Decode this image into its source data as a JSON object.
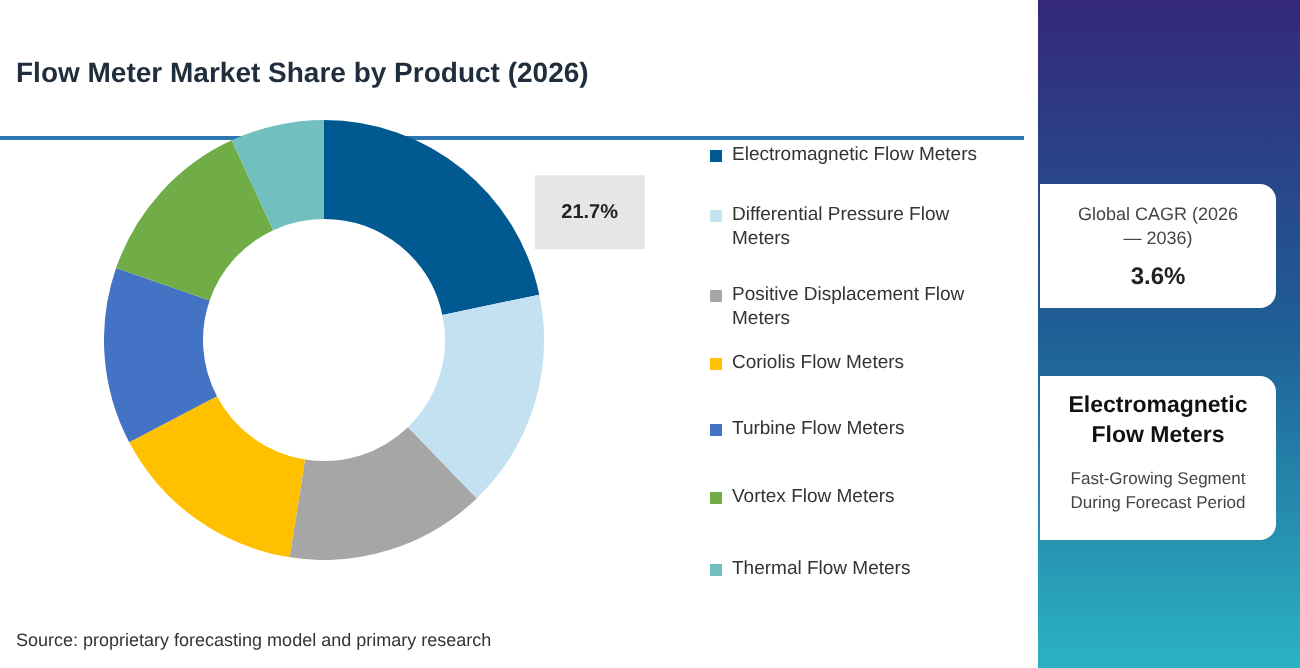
{
  "chart_data": {
    "type": "donut",
    "title": "Flow Meter Market Share by Product (2026)",
    "categories": [
      "Electromagnetic Flow Meters",
      "Differential Pressure Flow Meters",
      "Positive Displacement Flow Meters",
      "Coriolis Flow Meters",
      "Turbine Flow Meters",
      "Vortex Flow Meters",
      "Thermal Flow Meters"
    ],
    "values": [
      21.7,
      16.1,
      14.7,
      14.8,
      13.0,
      12.8,
      6.9
    ],
    "value_labels": [
      "21.7%",
      null,
      null,
      null,
      null,
      null,
      null
    ],
    "colors": [
      "#005a91",
      "#c4e1f2",
      "#a6a6a6",
      "#ffc000",
      "#4472c4",
      "#70ad47",
      "#72bfbf"
    ],
    "legend": "right",
    "annotations": [
      "Global CAGR (2026 — 2036)",
      "3.6%",
      "Electromagnetic Flow Meters",
      "Fast-Growing Segment During Forecast Period",
      "Source: proprietary forecasting model and primary research"
    ]
  }
}
